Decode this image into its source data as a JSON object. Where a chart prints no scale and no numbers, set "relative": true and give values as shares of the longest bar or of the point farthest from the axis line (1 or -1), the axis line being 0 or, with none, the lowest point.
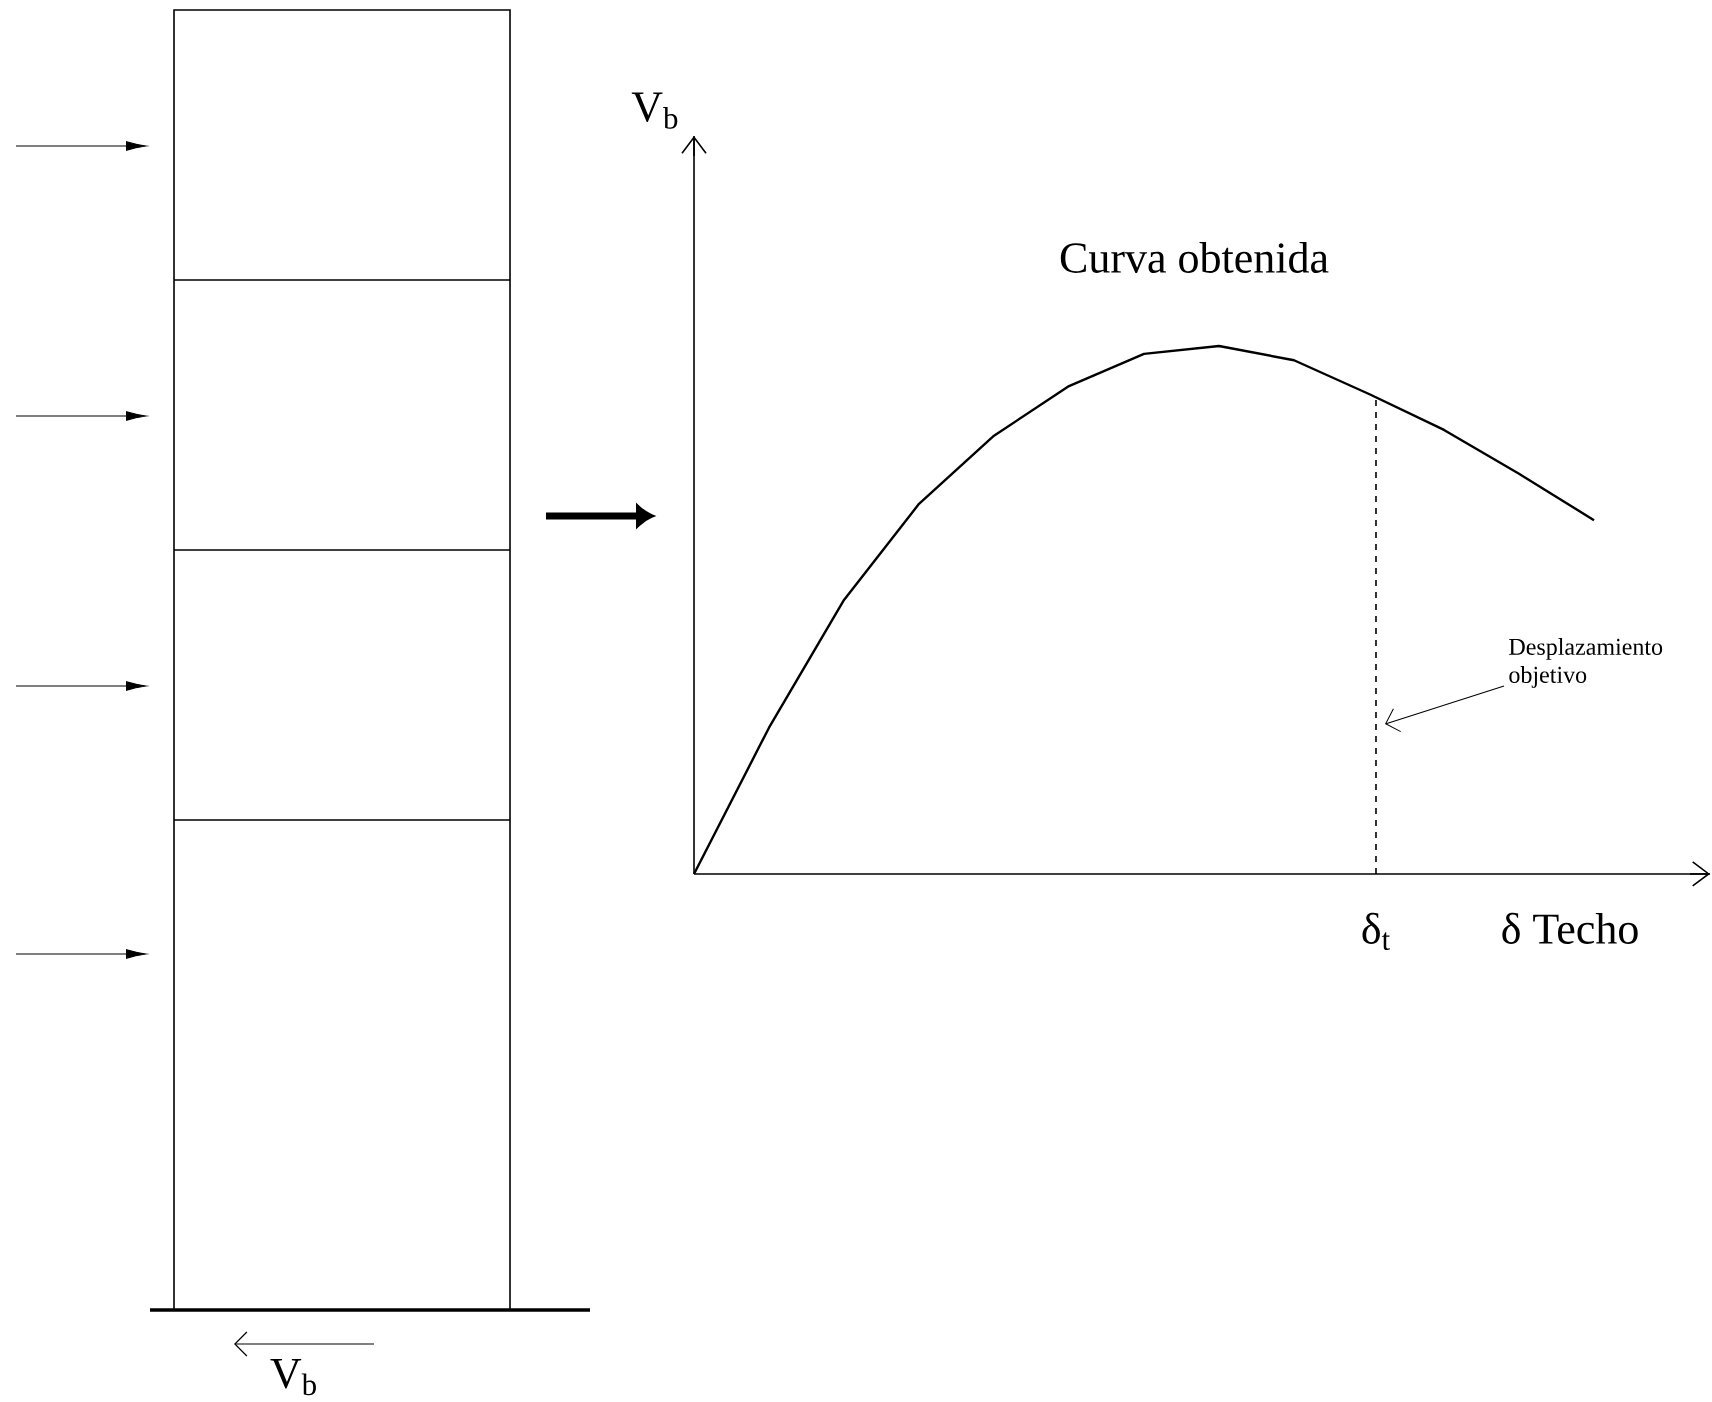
{
  "chart_data": {
    "type": "line",
    "relative": true,
    "title": "Curva obtenida",
    "xlabel": "δ  Techo",
    "ylabel": "V$_{b}$",
    "categories": [
      null,
      null,
      null,
      null,
      null,
      null,
      null,
      null,
      null,
      null,
      null,
      null,
      null
    ],
    "values": [
      0,
      0.277,
      0.519,
      0.701,
      0.83,
      0.924,
      0.985,
      1,
      0.973,
      0.909,
      0.841,
      0.758,
      0.67
    ],
    "color": "#000000",
    "marker": "none",
    "line_style": "solid",
    "annotations": [
      "Desplazamiento objetivo",
      "V$_{b}$",
      "δ$_{t}$"
    ]
  }
}
